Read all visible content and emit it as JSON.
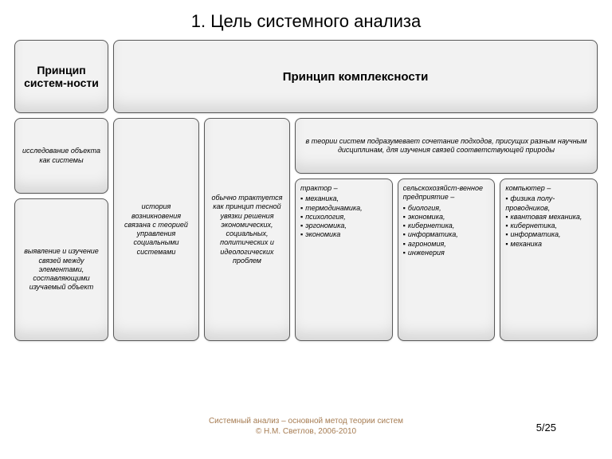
{
  "title": "1. Цель системного анализа",
  "left": {
    "header": "Принцип систем-ности",
    "box1": "исследование объекта как системы",
    "box2": "выявление и изучение связей между элементами, составляющими изучаемый объект"
  },
  "right": {
    "header": "Принцип комплексности",
    "col1": "история возникновения связана с теорией управления социальными системами",
    "col2": "обычно трактуется как принцип тесной увязки решения экономических, социальных, политических и идеологических проблем",
    "col3top": "в теории систем подразумевает сочетание подходов, присущих разным научным дисциплинам, для изучения связей соответствующей природы",
    "example1": {
      "lead": "трактор –",
      "items": [
        "механика,",
        "термодинамика,",
        "психология,",
        "эргономика,",
        "экономика"
      ]
    },
    "example2": {
      "lead": "сельскохозяйст-венное предприятие –",
      "items": [
        "биология,",
        "экономика,",
        "кибернетика,",
        "информатика,",
        "агрономия,",
        "инженерия"
      ]
    },
    "example3": {
      "lead": "компьютер –",
      "items": [
        "физика полу-проводников,",
        "квантовая механика,",
        "кибернетика,",
        "информатика,",
        "механика"
      ]
    }
  },
  "footer": {
    "line1": "Системный анализ – основной метод теории систем",
    "line2": "© Н.М. Светлов, 2006-2010",
    "page": "5/25"
  },
  "style": {
    "bg": "#ffffff",
    "box_border": "#595959",
    "box_fill": "#f2f2f2",
    "title_fontsize": 22,
    "header_fontsize": 15,
    "body_fontsize": 9,
    "footer_color": "#a67c52"
  }
}
